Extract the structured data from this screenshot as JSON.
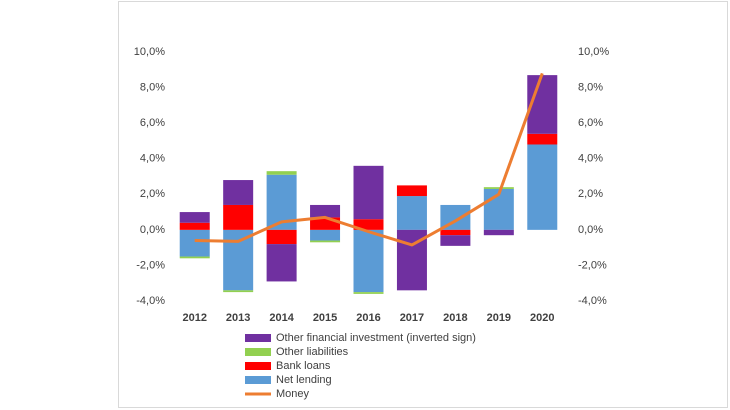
{
  "chart_data": {
    "type": "stacked-bar-line",
    "categories": [
      "2012",
      "2013",
      "2014",
      "2015",
      "2016",
      "2017",
      "2018",
      "2019",
      "2020"
    ],
    "series": [
      {
        "name": "Other financial investment (inverted sign)",
        "color": "#7030a0",
        "values": [
          0.6,
          1.4,
          -2.1,
          0.7,
          3.0,
          -3.4,
          -0.6,
          -0.3,
          3.3
        ]
      },
      {
        "name": "Other liabilities",
        "color": "#92d050",
        "values": [
          -0.1,
          -0.1,
          0.2,
          -0.1,
          -0.1,
          0,
          0,
          0.1,
          0
        ]
      },
      {
        "name": "Bank loans",
        "color": "#ff0000",
        "values": [
          0.4,
          1.4,
          -0.8,
          0.7,
          0.6,
          0.6,
          -0.3,
          0,
          0.6
        ]
      },
      {
        "name": "Net lending",
        "color": "#5b9bd5",
        "values": [
          -1.5,
          -3.4,
          3.1,
          -0.6,
          -3.5,
          1.9,
          1.4,
          2.3,
          4.8
        ]
      },
      {
        "name": "Money",
        "color": "#ed7d31",
        "axis": "y2",
        "values": [
          -0.6,
          -0.65,
          0.45,
          0.7,
          -0.1,
          -0.85,
          0.5,
          2.0,
          8.8
        ]
      }
    ],
    "ylim": [
      -4,
      10
    ],
    "yticks": [
      {
        "value": -4,
        "label": "-4,0%"
      },
      {
        "value": -2,
        "label": "-2,0%"
      },
      {
        "value": 0,
        "label": "0,0%"
      },
      {
        "value": 2,
        "label": "2,0%"
      },
      {
        "value": 4,
        "label": "4,0%"
      },
      {
        "value": 6,
        "label": "6,0%"
      },
      {
        "value": 8,
        "label": "8,0%"
      },
      {
        "value": 10,
        "label": "10,0%"
      }
    ],
    "y2lim": [
      -4,
      10
    ],
    "y2ticks": [
      {
        "value": -4,
        "label": "-4,0%"
      },
      {
        "value": -2,
        "label": "-2,0%"
      },
      {
        "value": 0,
        "label": "0,0%"
      },
      {
        "value": 2,
        "label": "2,0%"
      },
      {
        "value": 4,
        "label": "4,0%"
      },
      {
        "value": 6,
        "label": "6,0%"
      },
      {
        "value": 8,
        "label": "8,0%"
      },
      {
        "value": 10,
        "label": "10,0%"
      }
    ],
    "legend": "bottom"
  }
}
